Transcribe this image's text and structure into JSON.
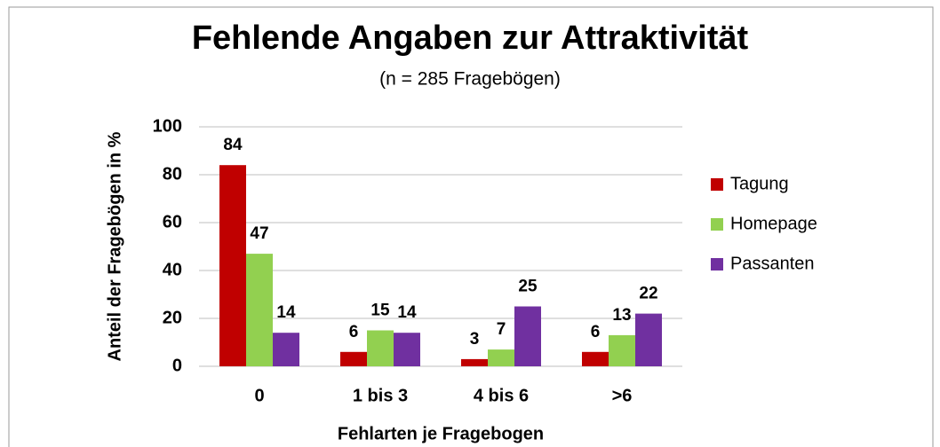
{
  "chart_data": {
    "type": "bar",
    "title": "Fehlende Angaben zur Attraktivität",
    "subtitle": "(n = 285 Fragebögen)",
    "x_label": "Fehlarten je Fragebogen",
    "y_label": "Anteil der Fragebögen in %",
    "categories": [
      "0",
      "1 bis 3",
      "4 bis 6",
      ">6"
    ],
    "series": [
      {
        "name": "Tagung",
        "color": "#c00000",
        "values": [
          84,
          6,
          3,
          6
        ]
      },
      {
        "name": "Homepage",
        "color": "#92d050",
        "values": [
          47,
          15,
          7,
          13
        ]
      },
      {
        "name": "Passanten",
        "color": "#7030a0",
        "values": [
          14,
          14,
          25,
          22
        ]
      }
    ],
    "ylim": [
      0,
      100
    ],
    "yticks": [
      0,
      20,
      40,
      60,
      80,
      100
    ],
    "grid": true,
    "legend": "right"
  }
}
